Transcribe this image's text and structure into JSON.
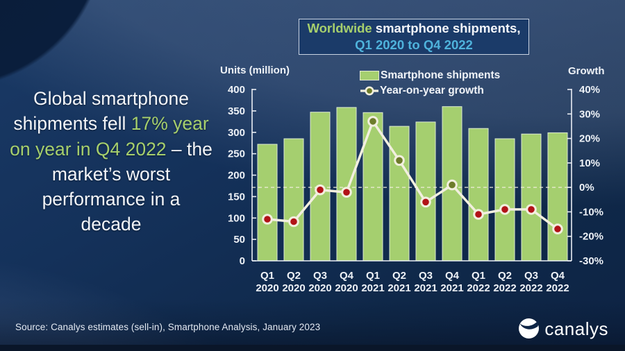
{
  "title_box": {
    "line1_highlight": "Worldwide",
    "line1_rest": " smartphone shipments,",
    "line2": "Q1 2020 to Q4 2022"
  },
  "headline": {
    "part1": "Global smartphone shipments fell ",
    "part2": "17% year on year in Q4 2022",
    "part3": " – the market’s worst performance in a decade"
  },
  "source": "Source: Canalys estimates (sell-in), Smartphone Analysis, January 2023",
  "logo_text": "canalys",
  "colors": {
    "bar": "#a5cf6f",
    "bar_border": "#dcead2",
    "line": "#f2efdf",
    "marker_positive": "#6e7c2b",
    "marker_negative": "#b11217",
    "axis": "#e9edf4",
    "axis_text": "#eef2f7",
    "highlight_green": "#a6cf6d",
    "title_teal": "#4fb3dc"
  },
  "chart_data": {
    "type": "bar",
    "title": "Worldwide smartphone shipments, Q1 2020 to Q4 2022",
    "categories": [
      "Q1 2020",
      "Q2 2020",
      "Q3 2020",
      "Q4 2020",
      "Q1 2021",
      "Q2 2021",
      "Q3 2021",
      "Q4 2021",
      "Q1 2022",
      "Q2 2022",
      "Q3 2022",
      "Q4 2022"
    ],
    "series": [
      {
        "name": "Smartphone shipments",
        "type": "bar",
        "axis": "left",
        "values": [
          272,
          285,
          347,
          358,
          346,
          314,
          324,
          360,
          309,
          285,
          296,
          299
        ]
      },
      {
        "name": "Year-on-year growth",
        "type": "line",
        "axis": "right",
        "values": [
          -13,
          -14,
          -1,
          -2,
          27,
          11,
          -6,
          1,
          -11,
          -9,
          -9,
          -17
        ]
      }
    ],
    "left_axis": {
      "label": "Units (million)",
      "min": 0,
      "max": 400,
      "step": 50
    },
    "right_axis": {
      "label": "Growth",
      "min": -30,
      "max": 40,
      "step": 10,
      "suffix": "%"
    },
    "zero_line": {
      "dashed": true,
      "at_growth": 0
    },
    "grid": false,
    "legend_position": "top"
  }
}
